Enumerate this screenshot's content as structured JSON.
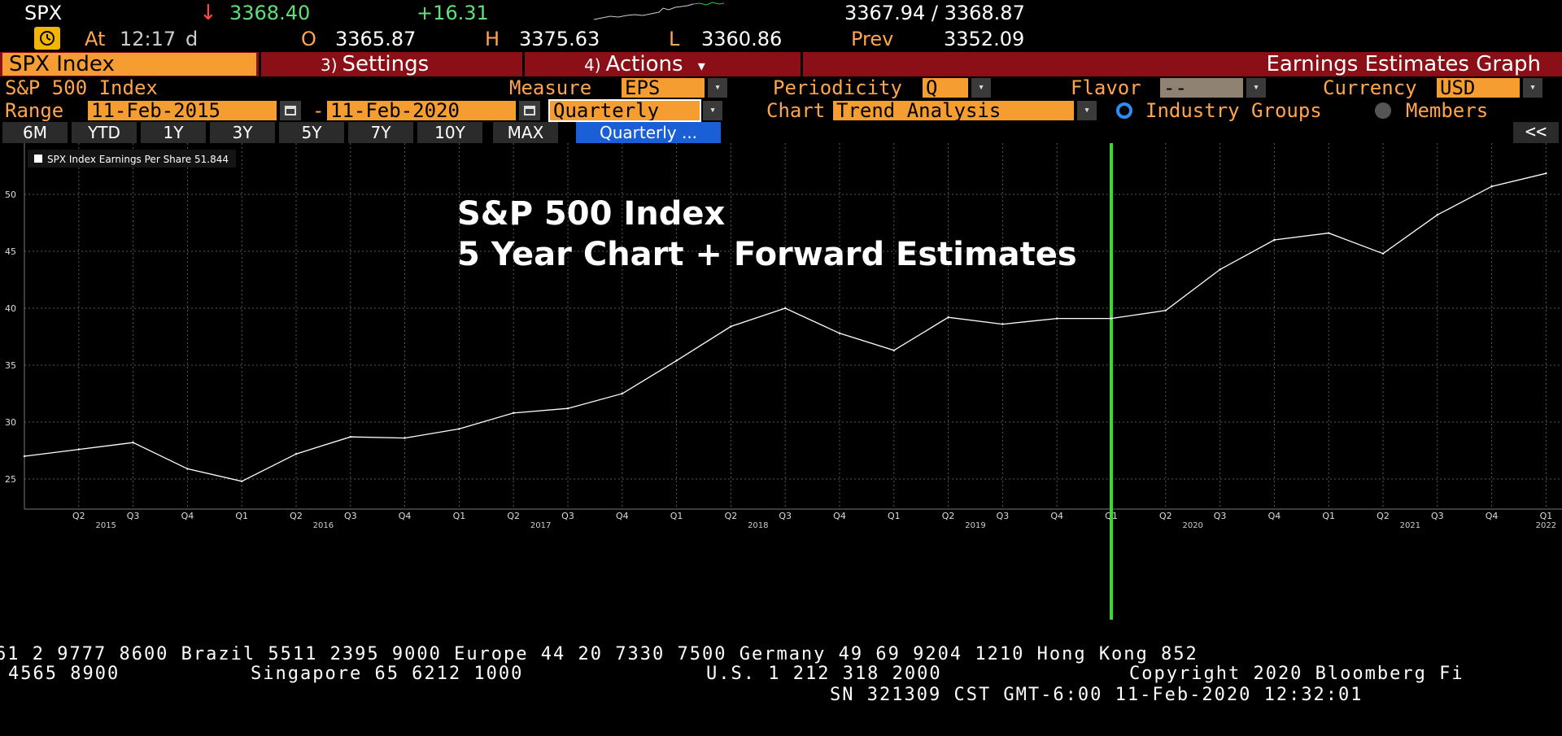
{
  "quote": {
    "ticker": "SPX",
    "arrow": "↓",
    "last": "3368.40",
    "change": "+16.31",
    "bid_ask": "3367.94 / 3368.87",
    "at_label": "At",
    "time": "12:17",
    "time_suffix": "d",
    "open_label": "O",
    "open": "3365.87",
    "high_label": "H",
    "high": "3375.63",
    "low_label": "L",
    "low": "3360.86",
    "prev_label": "Prev",
    "prev": "3352.09",
    "colors": {
      "up": "#5fe07a",
      "down": "#ff4a36",
      "label": "#ffa54a"
    }
  },
  "menubar": {
    "ticker_field": "SPX Index",
    "settings_num": "3)",
    "settings_label": "Settings",
    "actions_num": "4)",
    "actions_label": "Actions",
    "actions_caret": "▾",
    "page_title": "Earnings Estimates Graph"
  },
  "params": {
    "security_name": "S&P 500 Index",
    "measure_label": "Measure",
    "measure_value": "EPS",
    "periodicity_label": "Periodicity",
    "periodicity_value": "Q",
    "flavor_label": "Flavor",
    "flavor_value": "--",
    "currency_label": "Currency",
    "currency_value": "USD",
    "range_label": "Range",
    "range_start": "11-Feb-2015",
    "range_dash": "-",
    "range_end": "11-Feb-2020",
    "frequency_value": "Quarterly",
    "chart_label": "Chart",
    "chart_value": "Trend Analysis",
    "radio_industry": "Industry Groups",
    "radio_members": "Members",
    "dropdown_caret": "▾"
  },
  "range_buttons": [
    "6M",
    "YTD",
    "1Y",
    "3Y",
    "5Y",
    "7Y",
    "10Y",
    "MAX"
  ],
  "range_active": "Quarterly ...",
  "collapse_label": "<<",
  "chart_data": {
    "type": "line",
    "title_line1": "S&P 500 Index",
    "title_line2": "5 Year Chart + Forward Estimates",
    "legend": "SPX Index Earnings Per Share 51.844",
    "series": [
      {
        "name": "SPX Index Earnings Per Share",
        "x": [
          "Q1 2015",
          "Q2 2015",
          "Q3 2015",
          "Q4 2015",
          "Q1 2016",
          "Q2 2016",
          "Q3 2016",
          "Q4 2016",
          "Q1 2017",
          "Q2 2017",
          "Q3 2017",
          "Q4 2017",
          "Q1 2018",
          "Q2 2018",
          "Q3 2018",
          "Q4 2018",
          "Q1 2019",
          "Q2 2019",
          "Q3 2019",
          "Q4 2019",
          "Q1 2020",
          "Q2 2020",
          "Q3 2020",
          "Q4 2020",
          "Q1 2021",
          "Q2 2021",
          "Q3 2021",
          "Q4 2021",
          "Q1 2022"
        ],
        "values": [
          27.0,
          27.6,
          28.2,
          25.9,
          24.8,
          27.2,
          28.7,
          28.6,
          29.4,
          30.8,
          31.2,
          32.5,
          35.4,
          38.4,
          40.0,
          37.8,
          36.3,
          39.2,
          38.6,
          39.1,
          39.1,
          39.8,
          43.4,
          46.0,
          46.6,
          44.8,
          48.2,
          50.7,
          51.844
        ]
      }
    ],
    "x_tick_labels": [
      "Q2",
      "Q3",
      "Q4",
      "Q1",
      "Q2",
      "Q3",
      "Q4",
      "Q1",
      "Q2",
      "Q3",
      "Q4",
      "Q1",
      "Q2",
      "Q3",
      "Q4",
      "Q1",
      "Q2",
      "Q3",
      "Q4",
      "Q1",
      "Q2",
      "Q3",
      "Q4",
      "Q1",
      "Q2",
      "Q3",
      "Q4",
      "Q1"
    ],
    "year_labels": [
      "2015",
      "2016",
      "2017",
      "2018",
      "2019",
      "2020",
      "2021",
      "2022"
    ],
    "y_ticks": [
      25,
      30,
      35,
      40,
      45,
      50
    ],
    "ylim": [
      22.5,
      54.5
    ],
    "forecast_marker": "Q1 2020",
    "grid": true,
    "legend_position": "top-left",
    "colors": {
      "line": "#ffffff",
      "marker": "#3dd636",
      "grid": "#5a5a5a"
    }
  },
  "footer": {
    "line1": "61 2 9777 8600 Brazil 5511 2395 9000 Europe 44 20 7330 7500 Germany 49 69 9204 1210 Hong Kong 852",
    "line2a": "4565 8900",
    "line2b": "Singapore 65 6212 1000",
    "line2c": "U.S. 1 212 318 2000",
    "line2d": "Copyright 2020 Bloomberg Fi",
    "line3": "SN 321309 CST  GMT-6:00 11-Feb-2020 12:32:01"
  }
}
